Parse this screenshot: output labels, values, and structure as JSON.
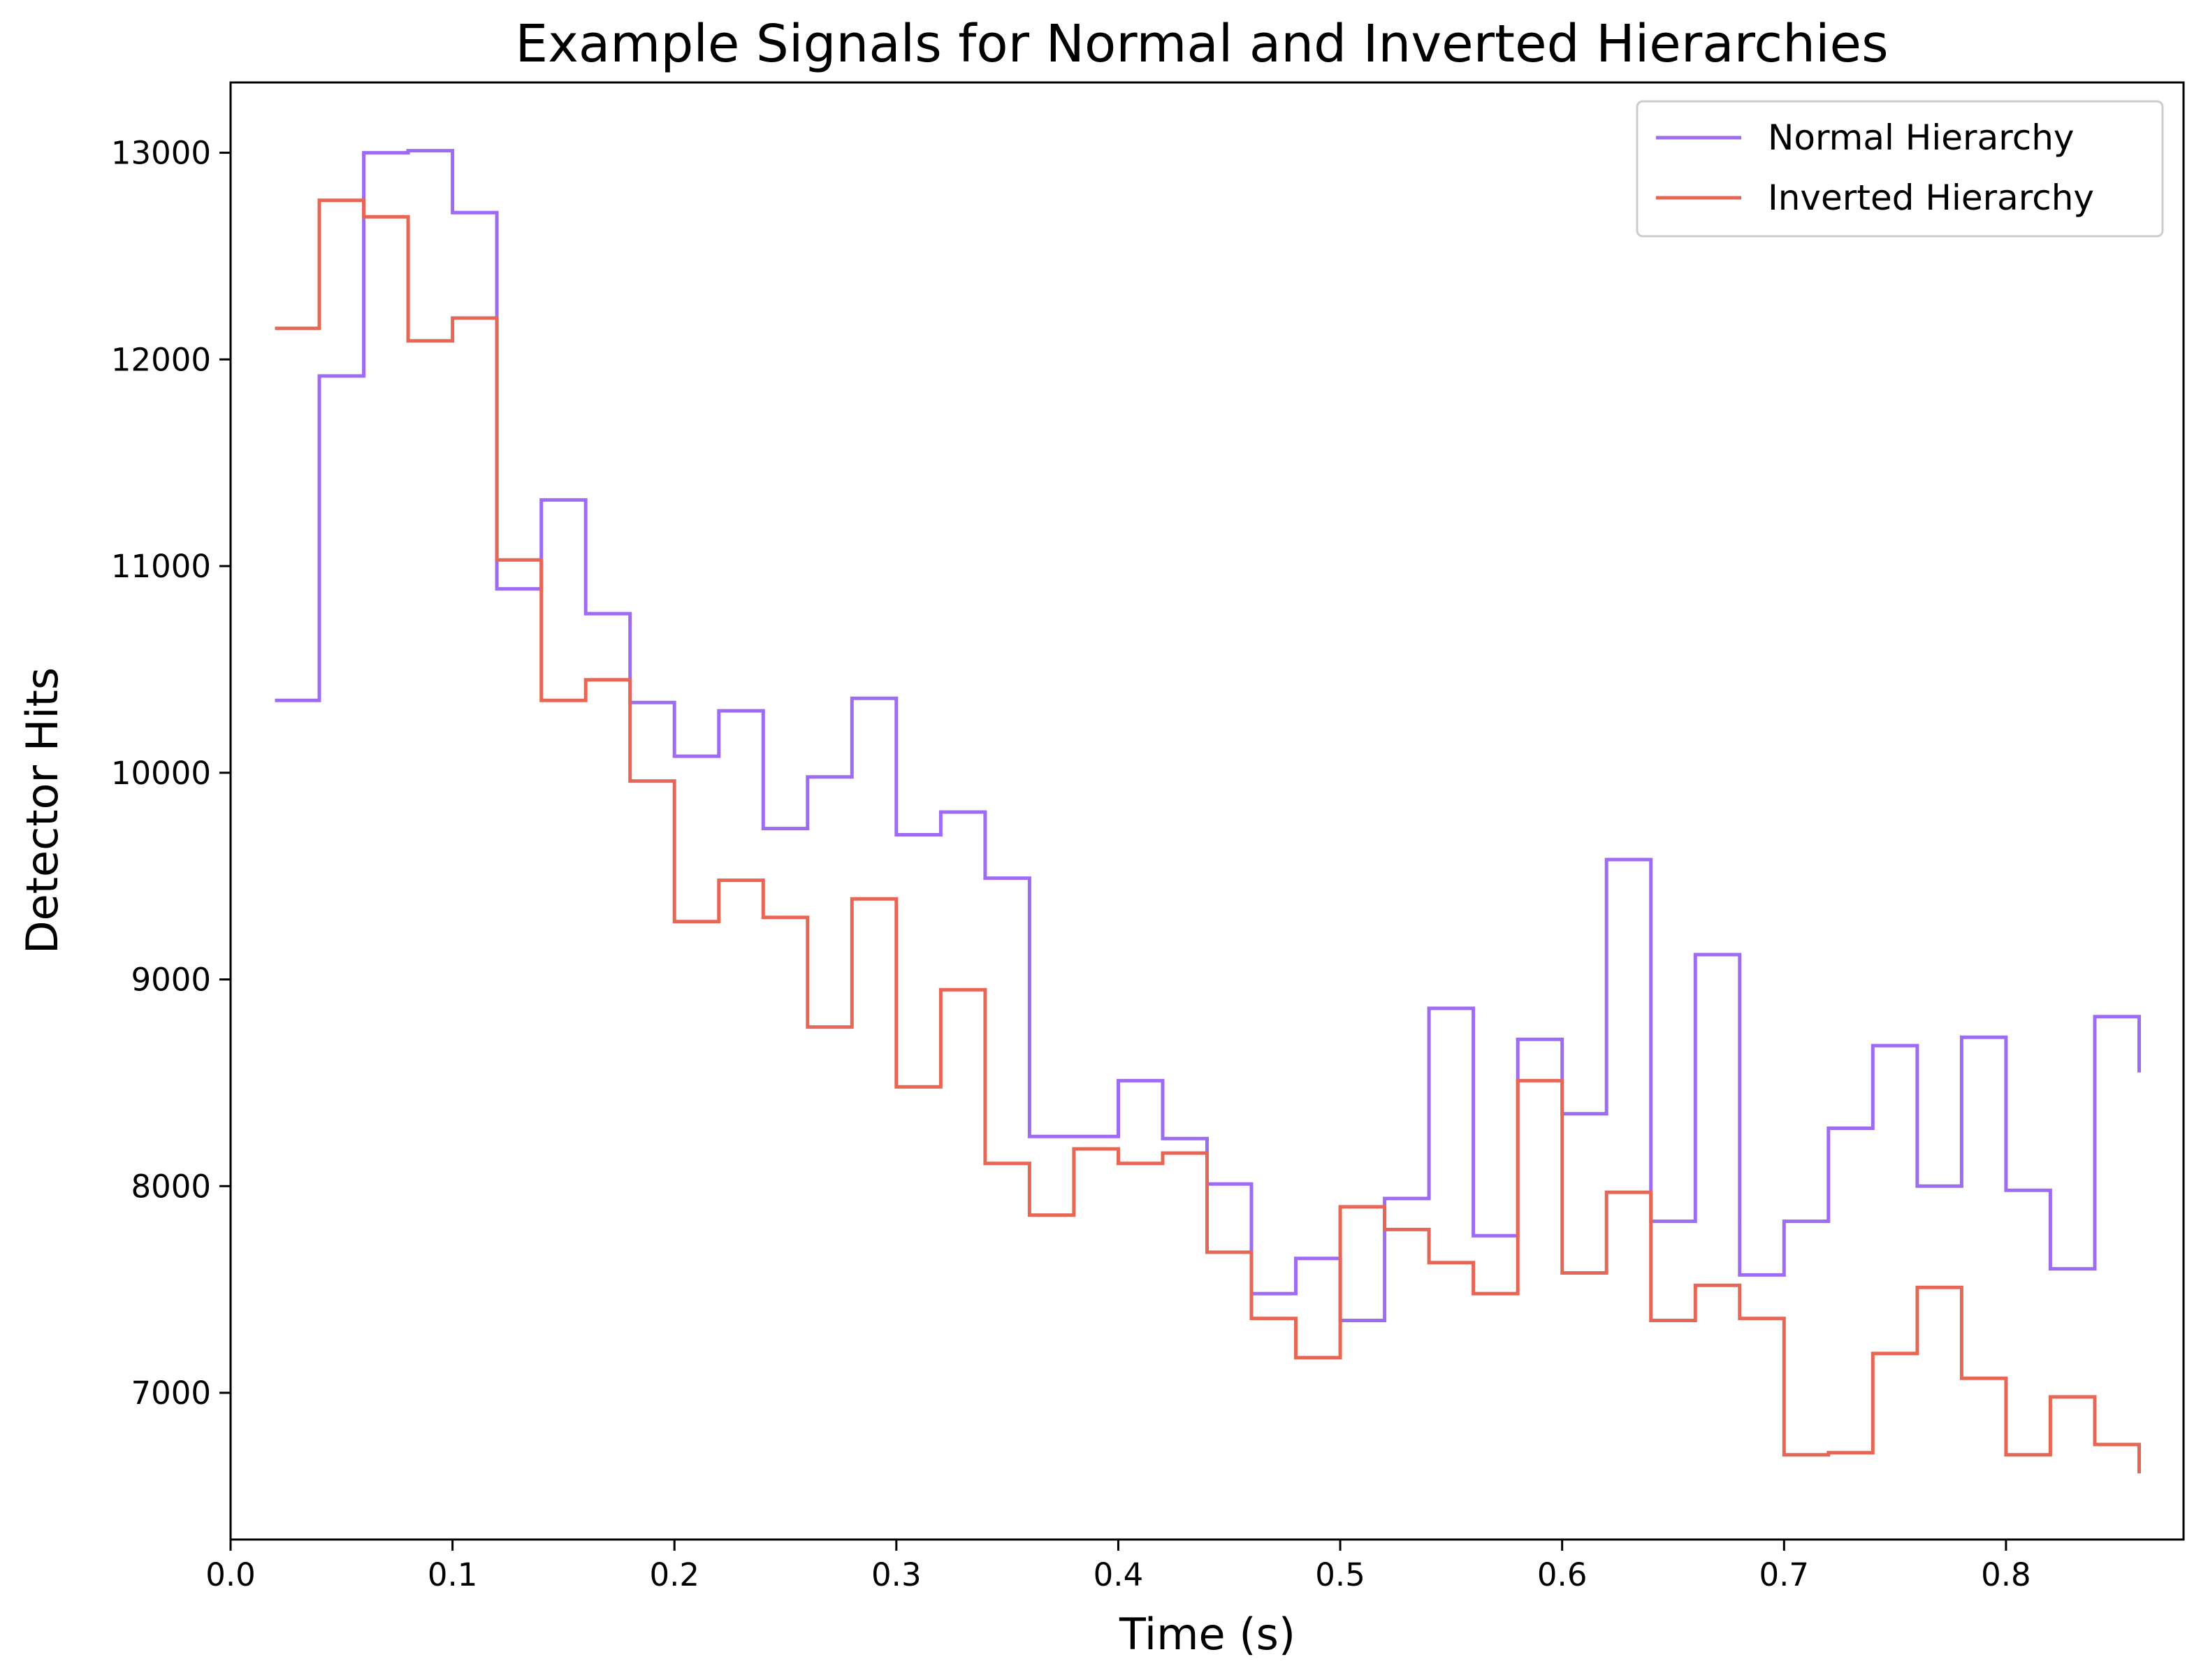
{
  "chart_data": {
    "type": "line",
    "step": "post",
    "title": "Example Signals for Normal and Inverted Hierarchies",
    "xlabel": "Time (s)",
    "ylabel": "Detector Hits",
    "xlim": [
      0.0,
      0.88
    ],
    "ylim": [
      6290,
      13340
    ],
    "grid": false,
    "legend_position": "top-right",
    "xticks": [
      "0.0",
      "0.1",
      "0.2",
      "0.3",
      "0.4",
      "0.5",
      "0.6",
      "0.7",
      "0.8"
    ],
    "yticks": [
      "7000",
      "8000",
      "9000",
      "10000",
      "11000",
      "12000",
      "13000"
    ],
    "x": [
      0.02,
      0.04,
      0.06,
      0.08,
      0.1,
      0.12,
      0.14,
      0.16,
      0.18,
      0.2,
      0.22,
      0.24,
      0.26,
      0.28,
      0.3,
      0.32,
      0.34,
      0.36,
      0.38,
      0.4,
      0.42,
      0.44,
      0.46,
      0.48,
      0.5,
      0.52,
      0.54,
      0.56,
      0.58,
      0.6,
      0.62,
      0.64,
      0.66,
      0.68,
      0.7,
      0.72,
      0.74,
      0.76,
      0.78,
      0.8,
      0.82,
      0.84,
      0.86
    ],
    "series": [
      {
        "name": "Normal Hierarchy",
        "color": "#9d6cf2",
        "values": [
          10350,
          11920,
          13000,
          13010,
          12710,
          10890,
          11320,
          10770,
          10340,
          10080,
          10300,
          9730,
          9980,
          10360,
          9700,
          9810,
          9490,
          8240,
          8240,
          8510,
          8230,
          8010,
          7480,
          7650,
          7350,
          7940,
          8860,
          7760,
          8710,
          8350,
          9580,
          7830,
          9120,
          7570,
          7830,
          8280,
          8680,
          8000,
          8720,
          7980,
          7600,
          8820,
          8550
        ]
      },
      {
        "name": "Inverted Hierarchy",
        "color": "#e76757",
        "values": [
          12150,
          12770,
          12690,
          12090,
          12200,
          11030,
          10350,
          10450,
          9960,
          9280,
          9480,
          9300,
          8770,
          9390,
          8480,
          8950,
          8110,
          7860,
          8180,
          8110,
          8160,
          7680,
          7360,
          7170,
          7900,
          7790,
          7630,
          7480,
          8510,
          7580,
          7970,
          7350,
          7520,
          7360,
          6700,
          6710,
          7190,
          7510,
          7070,
          6700,
          6980,
          6750,
          6610
        ]
      }
    ]
  }
}
